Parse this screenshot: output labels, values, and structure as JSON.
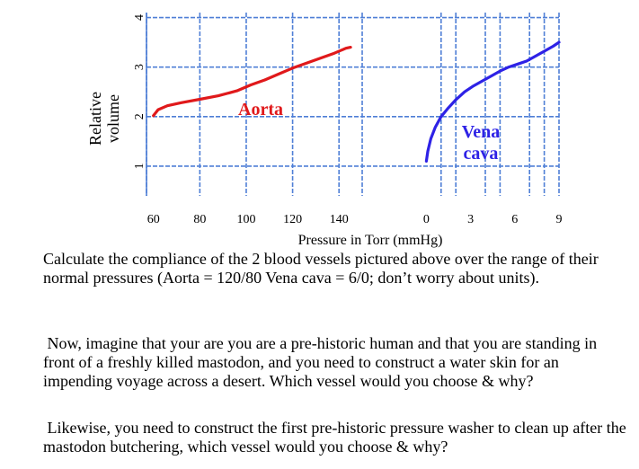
{
  "chart_data": {
    "type": "line",
    "ylabel_lines": [
      "Relative",
      "volume"
    ],
    "xlabel": "Pressure in Torr (mmHg)",
    "yticks": [
      1,
      2,
      3,
      4
    ],
    "ylim": [
      0.4,
      4.1
    ],
    "panels": [
      {
        "name": "aorta",
        "xticks": [
          60,
          80,
          100,
          120,
          140
        ],
        "xlim": [
          57,
          150
        ],
        "grid_x": [
          57,
          80,
          100,
          120,
          140,
          150
        ],
        "series": [
          {
            "name": "Aorta",
            "color": "#e0191b",
            "x": [
              60,
              62,
              66,
              72,
              80,
              88,
              96,
              102,
              108,
              114,
              120,
              126,
              132,
              138,
              143,
              145
            ],
            "y": [
              2.02,
              2.14,
              2.22,
              2.28,
              2.35,
              2.42,
              2.52,
              2.64,
              2.74,
              2.86,
              2.98,
              3.08,
              3.18,
              3.28,
              3.38,
              3.4
            ]
          }
        ]
      },
      {
        "name": "vena-cava",
        "xticks": [
          0,
          3,
          6,
          9
        ],
        "xlim": [
          -1,
          9
        ],
        "grid_x": [
          1,
          2,
          4,
          5,
          7,
          8,
          9
        ],
        "series": [
          {
            "name_lines": [
              "Vena",
              "cava"
            ],
            "color": "#2e22e6",
            "x": [
              0.0,
              0.1,
              0.3,
              0.6,
              1.0,
              1.5,
              2.0,
              2.6,
              3.2,
              3.8,
              4.4,
              5.0,
              5.6,
              6.2,
              6.8,
              7.4,
              8.0,
              8.6,
              9.0
            ],
            "y": [
              1.1,
              1.3,
              1.55,
              1.78,
              2.0,
              2.18,
              2.34,
              2.5,
              2.62,
              2.72,
              2.82,
              2.92,
              3.0,
              3.06,
              3.12,
              3.22,
              3.32,
              3.42,
              3.5
            ]
          }
        ]
      }
    ]
  },
  "questions": {
    "q1": "Calculate the compliance of the 2 blood vessels pictured above over the range of their normal  pressures (Aorta = 120/80  Vena cava = 6/0; don’t worry about units).",
    "q2": "Now, imagine that your are you are a pre-historic human and that you are standing in front of a freshly killed mastodon, and you need to construct a water skin for an impending voyage across a desert. Which vessel would you choose & why?",
    "q3": "Likewise, you need to construct the first pre-historic pressure washer to clean up after the mastodon butchering, which vessel would you choose & why?"
  }
}
